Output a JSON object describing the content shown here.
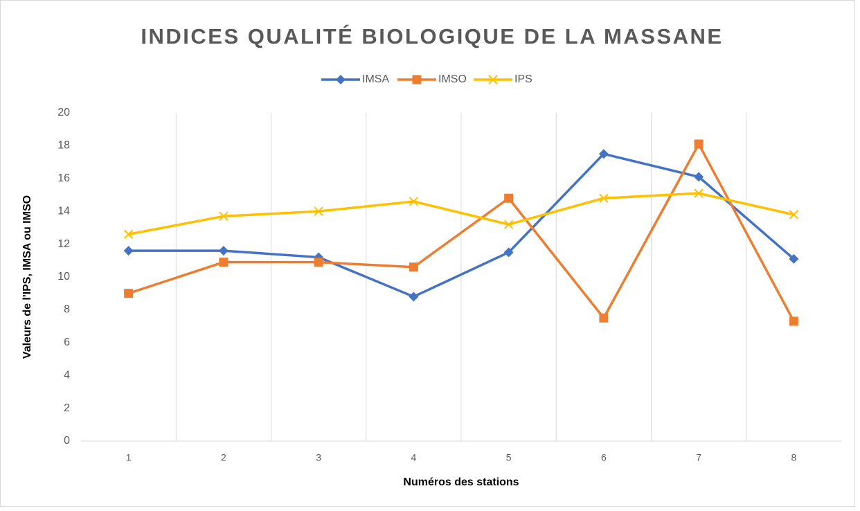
{
  "chart_data": {
    "type": "line",
    "title": "INDICES QUALITÉ BIOLOGIQUE DE LA MASSANE",
    "x_label": "Numéros des stations",
    "y_label": "Valeurs de l'IPS, IMSA ou IMSO",
    "categories": [
      "1",
      "2",
      "3",
      "4",
      "5",
      "6",
      "7",
      "8"
    ],
    "series": [
      {
        "name": "IMSA",
        "color": "#4472c4",
        "marker": "diamond",
        "values": [
          11.6,
          11.6,
          11.2,
          8.8,
          11.5,
          17.5,
          16.1,
          11.1
        ]
      },
      {
        "name": "IMSO",
        "color": "#ed7d31",
        "marker": "square",
        "values": [
          9.0,
          10.9,
          10.9,
          10.6,
          14.8,
          7.5,
          18.1,
          7.3
        ]
      },
      {
        "name": "IPS",
        "color": "#ffc000",
        "marker": "x",
        "values": [
          12.6,
          13.7,
          14.0,
          14.6,
          13.2,
          14.8,
          15.1,
          13.8
        ]
      }
    ],
    "ylim": [
      0,
      20
    ],
    "yticks": [
      0,
      2,
      4,
      6,
      8,
      10,
      12,
      14,
      16,
      18,
      20
    ],
    "grid": "vertical",
    "legend": "top"
  }
}
